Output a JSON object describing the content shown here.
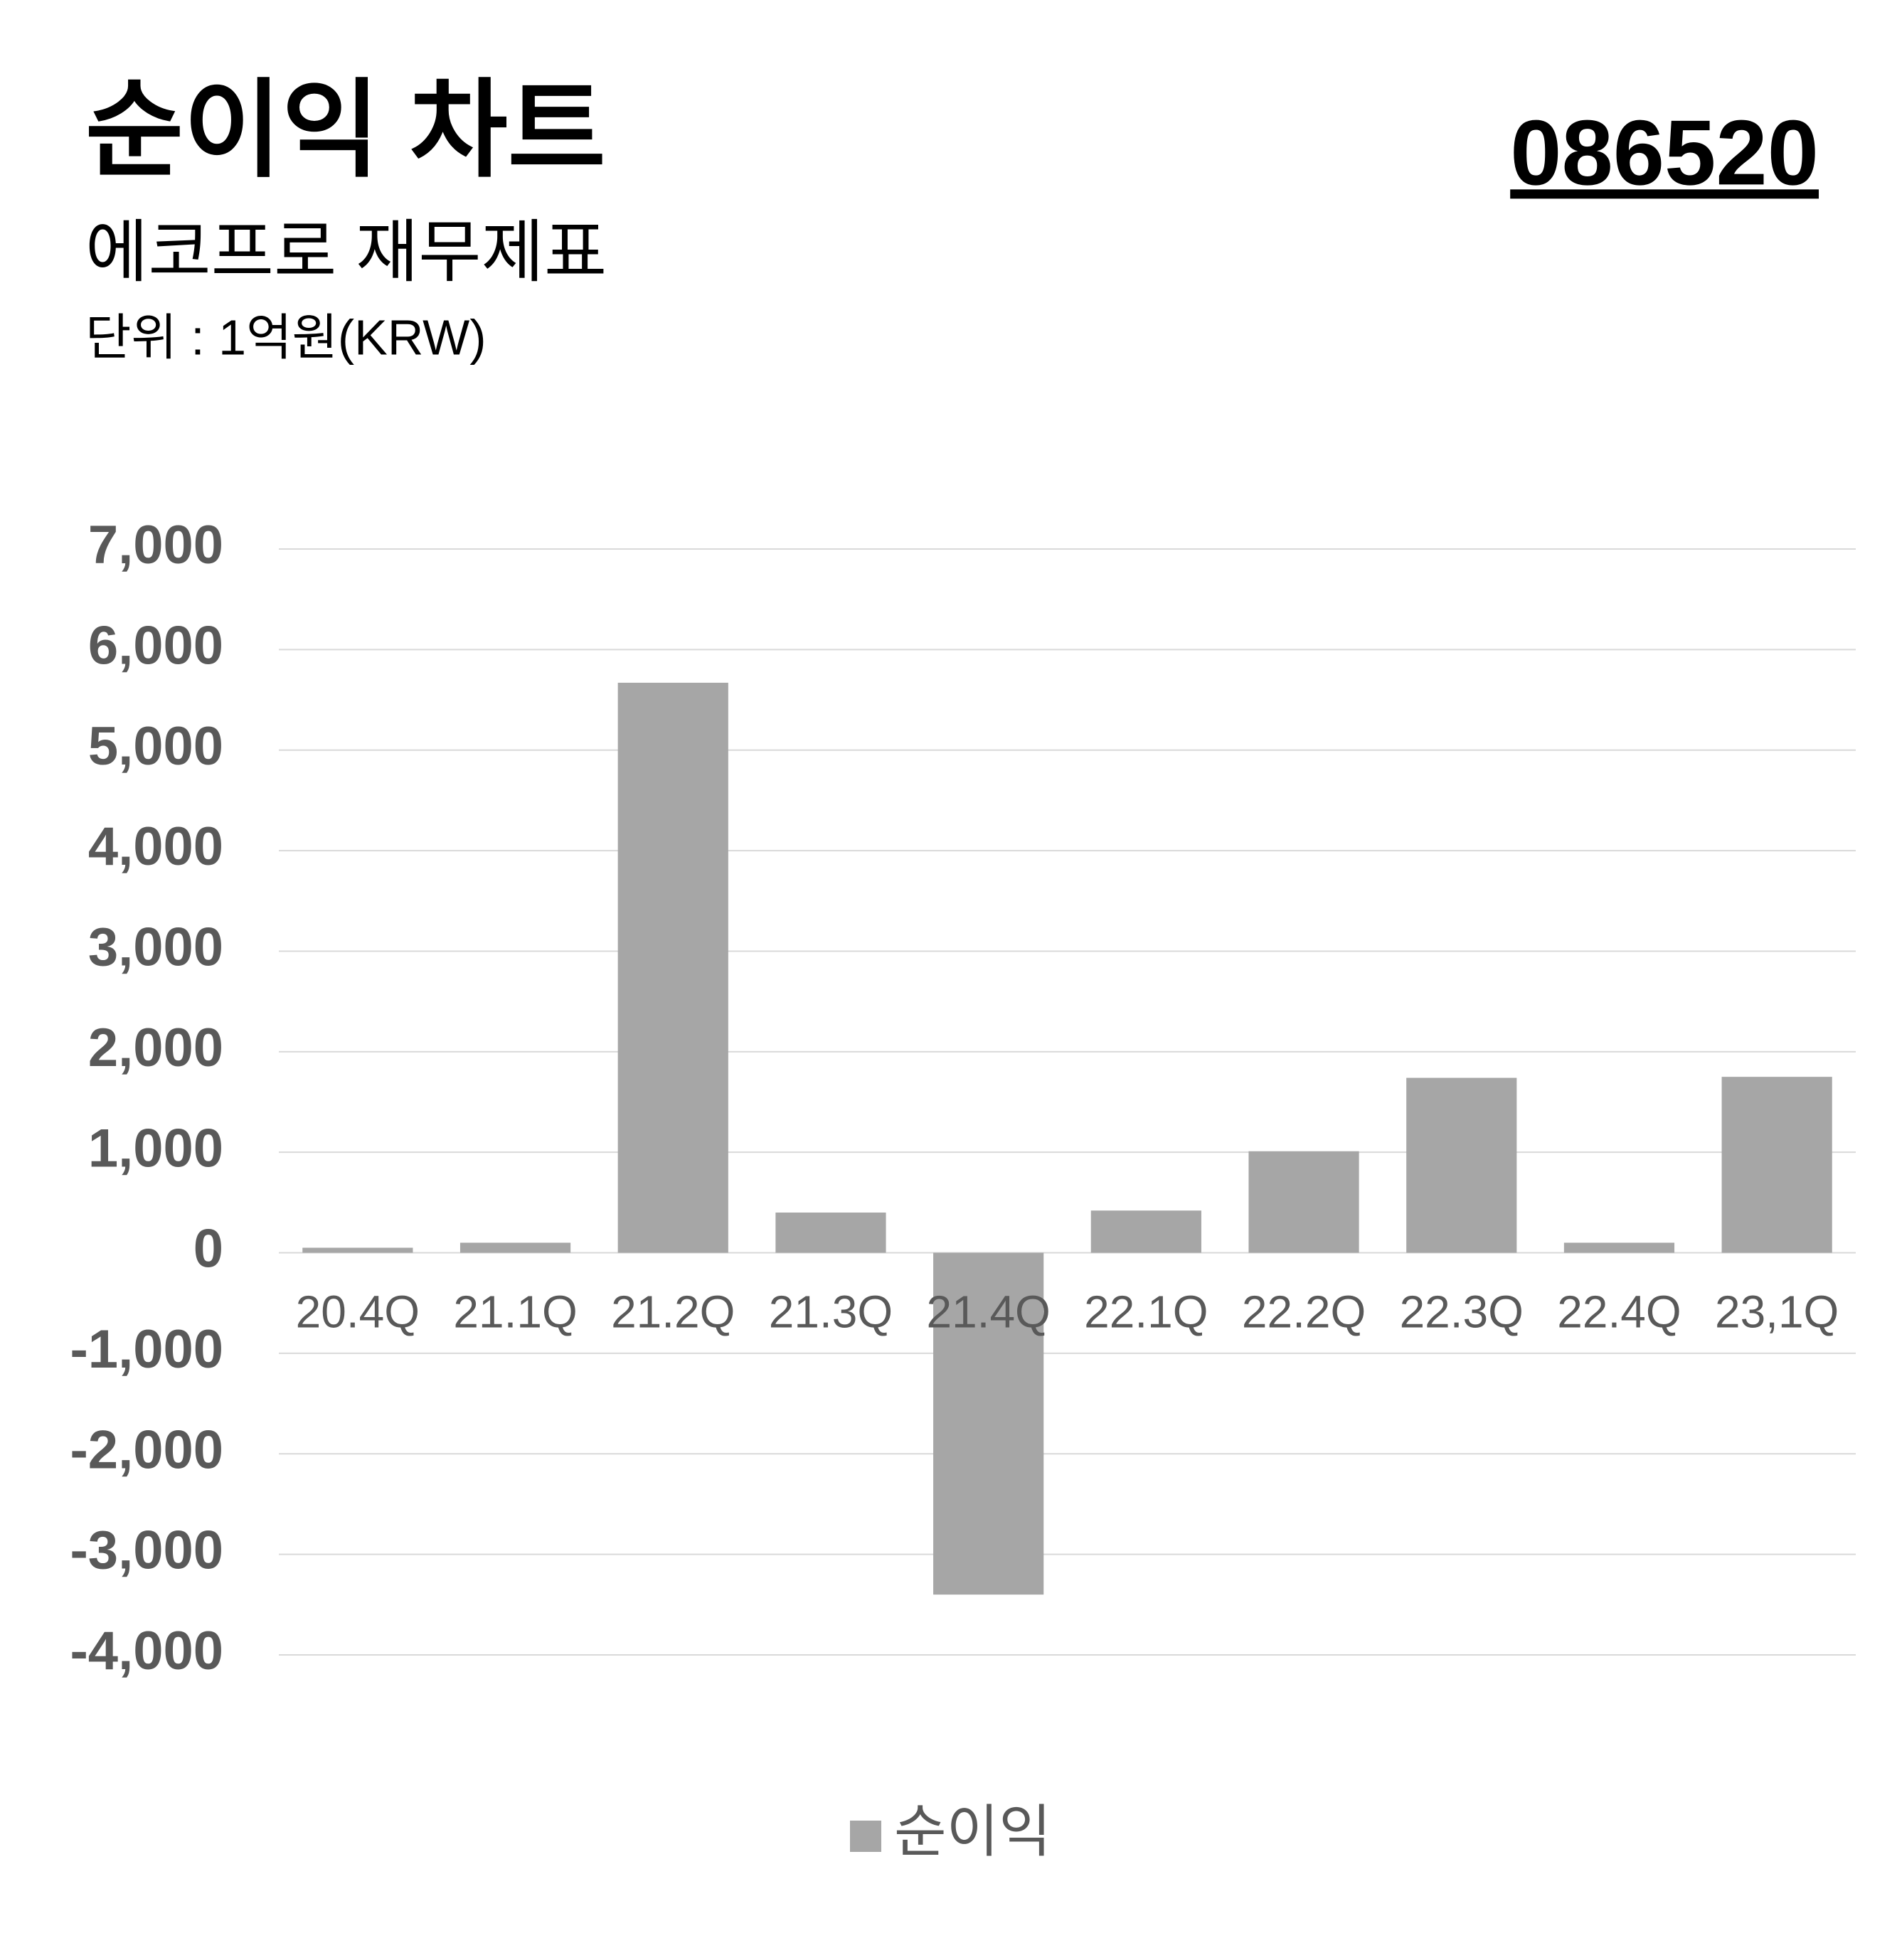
{
  "chart_data": {
    "type": "bar",
    "title": "순이익 차트",
    "code": "086520",
    "subtitle": "에코프로 재무제표",
    "unit_label": "단위 : 1억원(KRW)",
    "categories": [
      "20.4Q",
      "21.1Q",
      "21.2Q",
      "21.3Q",
      "21.4Q",
      "22.1Q",
      "22.2Q",
      "22.3Q",
      "22.4Q",
      "23,1Q"
    ],
    "series": [
      {
        "name": "순이익",
        "color": "#a6a6a6",
        "values": [
          50,
          100,
          5670,
          400,
          -3400,
          420,
          1010,
          1740,
          100,
          1750
        ]
      }
    ],
    "ylim": [
      -4000,
      7000
    ],
    "yticks": [
      {
        "value": -4000,
        "label": "-4,000"
      },
      {
        "value": -3000,
        "label": "-3,000"
      },
      {
        "value": -2000,
        "label": "-2,000"
      },
      {
        "value": -1000,
        "label": "-1,000"
      },
      0,
      {
        "value": 1000,
        "label": "1,000"
      },
      {
        "value": 2000,
        "label": "2,000"
      },
      {
        "value": 3000,
        "label": "3,000"
      },
      {
        "value": 4000,
        "label": "4,000"
      },
      {
        "value": 5000,
        "label": "5,000"
      },
      {
        "value": 6000,
        "label": "6,000"
      },
      {
        "value": 7000,
        "label": "7,000"
      }
    ],
    "grid": true,
    "legend": "bottom"
  }
}
